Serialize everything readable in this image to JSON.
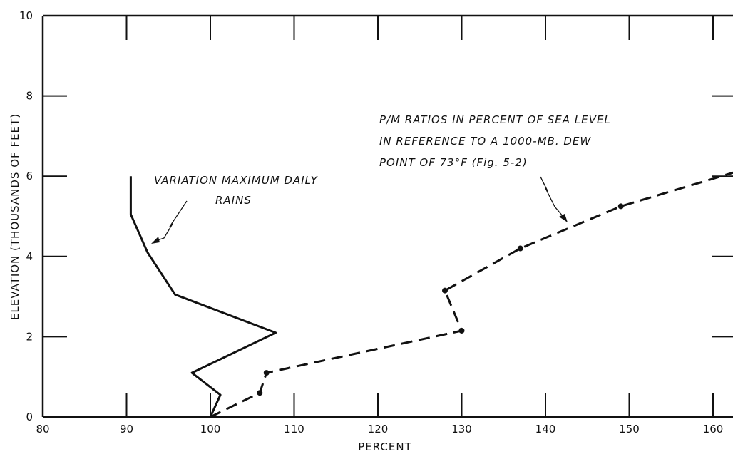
{
  "chart_data": {
    "type": "line",
    "title": "",
    "xlabel": "PERCENT",
    "ylabel": "ELEVATION (THOUSANDS OF FEET)",
    "xlim": [
      80,
      165
    ],
    "ylim": [
      0,
      10
    ],
    "x_ticks": [
      "80",
      "90",
      "100",
      "110",
      "120",
      "130",
      "140",
      "150",
      "160"
    ],
    "y_ticks": [
      "0",
      "2",
      "4",
      "6",
      "8",
      "10"
    ],
    "grid": false,
    "series": [
      {
        "name": "VARIATION MAXIMUM DAILY RAINS",
        "style": "solid",
        "markers": false,
        "points": [
          [
            100,
            0
          ],
          [
            101.2,
            0.55
          ],
          [
            97.8,
            1.1
          ],
          [
            107.8,
            2.1
          ],
          [
            95.8,
            3.05
          ],
          [
            92.5,
            4.1
          ],
          [
            90.5,
            5.05
          ],
          [
            90.5,
            6.0
          ]
        ]
      },
      {
        "name": "P/M RATIOS IN PERCENT OF SEA LEVEL IN REFERENCE TO A 1000-MB. DEW POINT OF 73°F (Fig. 5-2)",
        "style": "dashed",
        "markers": true,
        "points": [
          [
            100,
            0
          ],
          [
            105.9,
            0.6
          ],
          [
            106.7,
            1.1
          ],
          [
            130,
            2.15
          ],
          [
            128,
            3.15
          ],
          [
            137,
            4.2
          ],
          [
            149,
            5.25
          ],
          [
            165,
            6.25
          ]
        ]
      }
    ],
    "annotations": [
      {
        "lines": [
          "VARIATION MAXIMUM DAILY",
          "RAINS"
        ]
      },
      {
        "lines": [
          "P/M RATIOS IN PERCENT OF SEA LEVEL",
          "IN REFERENCE TO A 1000-MB. DEW",
          "POINT OF 73°F (Fig. 5-2)"
        ]
      }
    ]
  }
}
